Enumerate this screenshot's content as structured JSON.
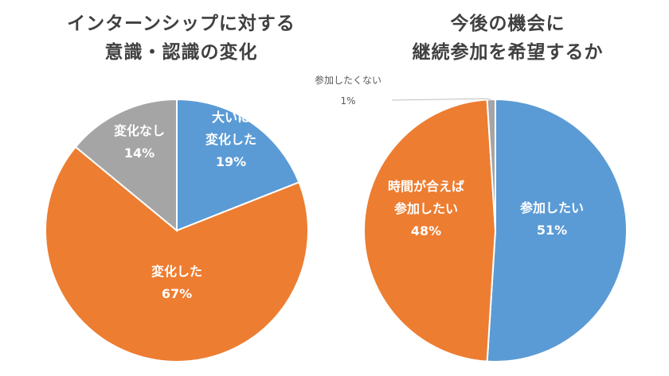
{
  "chart_data": [
    {
      "type": "pie",
      "title_lines": [
        "インターンシップに対する",
        "意識・認識の変化"
      ],
      "slices": [
        {
          "label_lines": [
            "大いに",
            "変化した"
          ],
          "pct_label": "19%",
          "value": 19,
          "color": "#5b9bd5"
        },
        {
          "label_lines": [
            "変化した"
          ],
          "pct_label": "67%",
          "value": 67,
          "color": "#ed7d31"
        },
        {
          "label_lines": [
            "変化なし"
          ],
          "pct_label": "14%",
          "value": 14,
          "color": "#a5a5a5"
        }
      ]
    },
    {
      "type": "pie",
      "title_lines": [
        "今後の機会に",
        "継続参加を希望するか"
      ],
      "slices": [
        {
          "label_lines": [
            "参加したい"
          ],
          "pct_label": "51%",
          "value": 51,
          "color": "#5b9bd5"
        },
        {
          "label_lines": [
            "時間が合えば",
            "参加したい"
          ],
          "pct_label": "48%",
          "value": 48,
          "color": "#ed7d31"
        },
        {
          "label_lines": [
            "参加したくない"
          ],
          "pct_label": "1%",
          "value": 1,
          "color": "#a5a5a5"
        }
      ]
    }
  ]
}
